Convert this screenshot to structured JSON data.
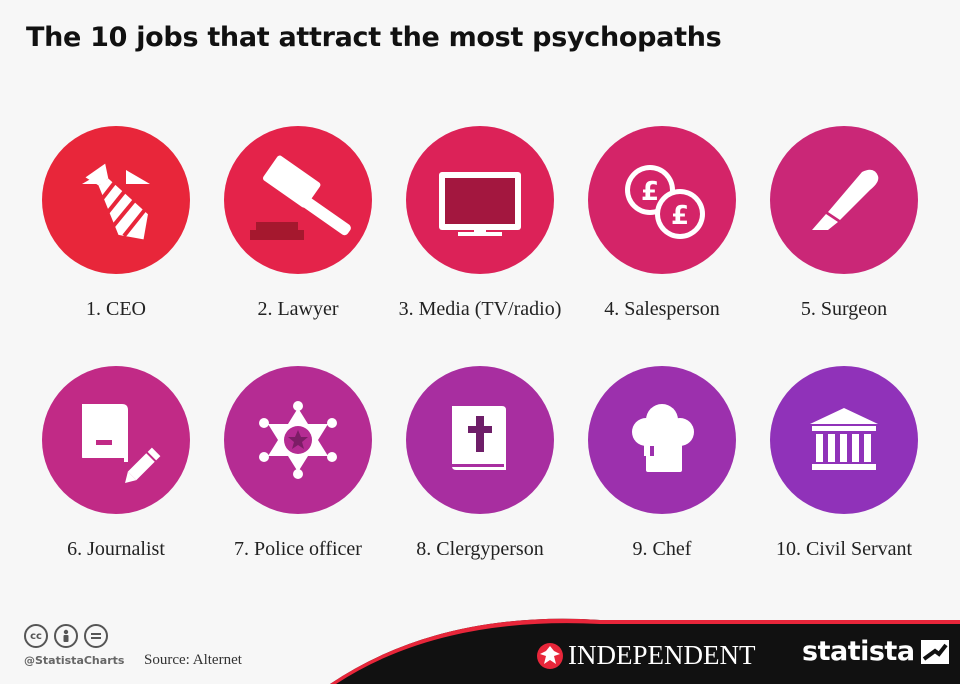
{
  "title": "The 10 jobs that attract the most psychopaths",
  "jobs": [
    {
      "label": "1. CEO",
      "icon": "tie-icon",
      "color": "#e8263a"
    },
    {
      "label": "2. Lawyer",
      "icon": "gavel-icon",
      "color": "#e4234a"
    },
    {
      "label": "3. Media (TV/radio)",
      "icon": "tv-icon",
      "color": "#dc2258"
    },
    {
      "label": "4. Salesperson",
      "icon": "pound-coins-icon",
      "color": "#d42468"
    },
    {
      "label": "5. Surgeon",
      "icon": "scalpel-icon",
      "color": "#ca2777"
    },
    {
      "label": "6. Journalist",
      "icon": "notebook-pencil-icon",
      "color": "#c12a86"
    },
    {
      "label": "7. Police officer",
      "icon": "sheriff-star-icon",
      "color": "#b52c93"
    },
    {
      "label": "8. Clergyperson",
      "icon": "bible-icon",
      "color": "#a82ea0"
    },
    {
      "label": "9. Chef",
      "icon": "chef-hat-icon",
      "color": "#9c30ad"
    },
    {
      "label": "10. Civil Servant",
      "icon": "government-building-icon",
      "color": "#9032b9"
    }
  ],
  "footer": {
    "handle": "@StatistaCharts",
    "source": "Source: Alternet",
    "independent": "INDEPENDENT",
    "statista": "statista",
    "license_icons": [
      "cc-icon",
      "attribution-icon",
      "no-derivatives-icon"
    ]
  }
}
